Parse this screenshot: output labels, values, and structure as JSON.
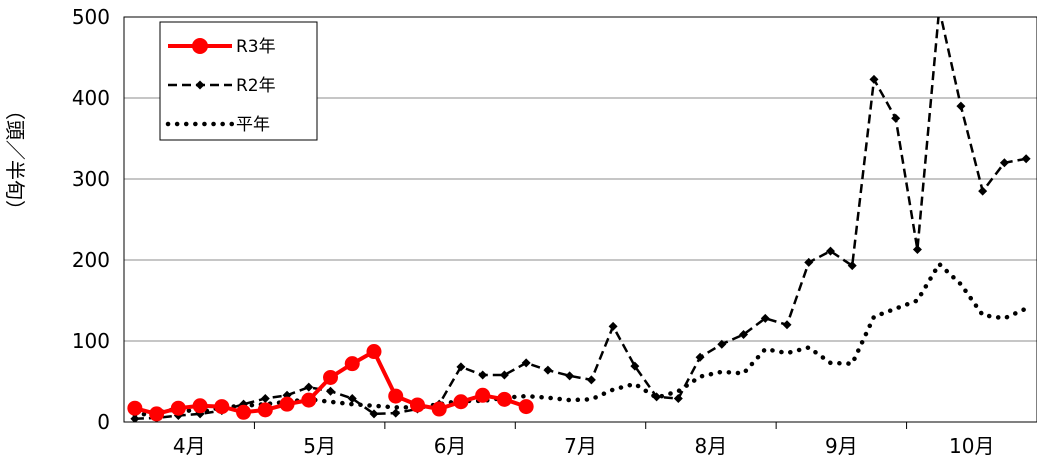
{
  "chart_data": {
    "type": "line",
    "title": "",
    "ylabel": "（頭／半旬）",
    "ylim": [
      0,
      500
    ],
    "yticks": [
      0,
      100,
      200,
      300,
      400,
      500
    ],
    "x_count": 42,
    "months": [
      {
        "label": "4月",
        "start": 0
      },
      {
        "label": "5月",
        "start": 6
      },
      {
        "label": "6月",
        "start": 12
      },
      {
        "label": "7月",
        "start": 18
      },
      {
        "label": "8月",
        "start": 24
      },
      {
        "label": "9月",
        "start": 30
      },
      {
        "label": "10月",
        "start": 36
      }
    ],
    "grid": "horizontal",
    "legend_position": "top-left",
    "series": [
      {
        "name": "R3年",
        "style": "solid-circle",
        "color": "#ff0000",
        "values": [
          17,
          10,
          17,
          20,
          19,
          12,
          15,
          22,
          27,
          55,
          72,
          87,
          32,
          21,
          16,
          25,
          33,
          28,
          19
        ]
      },
      {
        "name": "R2年",
        "style": "dashed-diamond",
        "color": "#000000",
        "values": [
          4,
          5,
          8,
          10,
          14,
          22,
          29,
          33,
          43,
          38,
          29,
          10,
          11,
          16,
          22,
          68,
          58,
          58,
          73,
          64,
          57,
          52,
          118,
          69,
          31,
          29,
          80,
          96,
          108,
          128,
          120,
          197,
          211,
          193,
          423,
          375,
          213,
          510,
          390,
          285,
          320,
          325
        ]
      },
      {
        "name": "平年",
        "style": "dotted",
        "color": "#000000",
        "values": [
          8,
          12,
          16,
          12,
          18,
          20,
          22,
          25,
          28,
          25,
          22,
          20,
          18,
          18,
          22,
          26,
          26,
          30,
          32,
          30,
          27,
          28,
          40,
          47,
          30,
          38,
          56,
          62,
          60,
          90,
          85,
          92,
          73,
          72,
          130,
          140,
          150,
          195,
          170,
          132,
          128,
          140
        ]
      }
    ]
  }
}
